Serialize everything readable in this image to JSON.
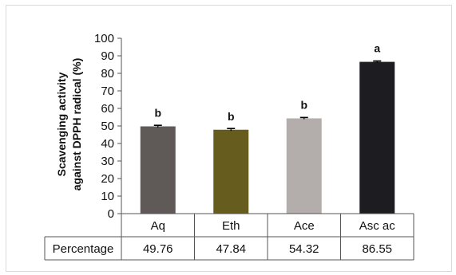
{
  "chart_data": {
    "type": "bar",
    "ylabel_line1": "Scavenging activity",
    "ylabel_line2": "against DPPH radical (%)",
    "ylim": [
      0,
      100
    ],
    "yticks": [
      "0",
      "10",
      "20",
      "30",
      "40",
      "50",
      "60",
      "70",
      "80",
      "90",
      "100"
    ],
    "categories": [
      "Aq",
      "Eth",
      "Ace",
      "Asc ac"
    ],
    "values": [
      49.76,
      47.84,
      54.32,
      86.55
    ],
    "errors": [
      0.6,
      0.7,
      0.5,
      0.5
    ],
    "significance": [
      "b",
      "b",
      "b",
      "a"
    ],
    "colors": [
      "#5f5a57",
      "#665c1e",
      "#b3aeac",
      "#1d1c21"
    ],
    "table": {
      "row_label": "Percentage",
      "cells": [
        "49.76",
        "47.84",
        "54.32",
        "86.55"
      ]
    },
    "grid": false,
    "legend": "none"
  }
}
